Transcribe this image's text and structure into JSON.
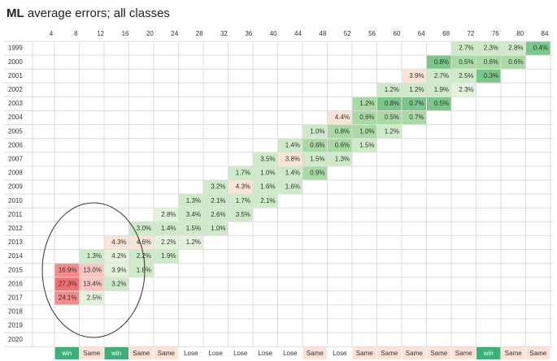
{
  "header": {
    "title_bold": "ML",
    "title_rest": "average errors; all classes"
  },
  "columns": [
    "4",
    "8",
    "12",
    "16",
    "20",
    "24",
    "28",
    "32",
    "36",
    "40",
    "44",
    "48",
    "52",
    "56",
    "60",
    "64",
    "68",
    "72",
    "76",
    "80",
    "84"
  ],
  "rows": [
    {
      "year": "1999",
      "cells": [
        null,
        null,
        null,
        null,
        null,
        null,
        null,
        null,
        null,
        null,
        null,
        null,
        null,
        null,
        null,
        null,
        {
          "text": "2.7%",
          "color": "#cfeac8"
        },
        {
          "text": "2.3%",
          "color": "#cfeac8"
        },
        {
          "text": "2.8%",
          "color": "#cfeac8"
        },
        {
          "text": "0.4%",
          "color": "#7cc68c"
        }
      ]
    },
    {
      "year": "2000",
      "cells": [
        null,
        null,
        null,
        null,
        null,
        null,
        null,
        null,
        null,
        null,
        null,
        null,
        null,
        null,
        null,
        {
          "text": "0.8%",
          "color": "#7cc68c"
        },
        {
          "text": "0.5%",
          "color": "#a9d9a5"
        },
        {
          "text": "0.6%",
          "color": "#a9d9a5"
        },
        {
          "text": "0.6%",
          "color": "#a9d9a5"
        }
      ]
    },
    {
      "year": "2001",
      "cells": [
        null,
        null,
        null,
        null,
        null,
        null,
        null,
        null,
        null,
        null,
        null,
        null,
        null,
        null,
        {
          "text": "3.9%",
          "color": "#fbe3d6"
        },
        {
          "text": "2.7%",
          "color": "#cfeac8"
        },
        {
          "text": "2.5%",
          "color": "#cfeac8"
        },
        {
          "text": "0.3%",
          "color": "#7cc68c"
        }
      ]
    },
    {
      "year": "2002",
      "cells": [
        null,
        null,
        null,
        null,
        null,
        null,
        null,
        null,
        null,
        null,
        null,
        null,
        null,
        {
          "text": "1.2%",
          "color": "#cfeac8"
        },
        {
          "text": "1.2%",
          "color": "#cfeac8"
        },
        {
          "text": "1.9%",
          "color": "#cfeac8"
        },
        {
          "text": "2.3%",
          "color": "#e4f2dc"
        }
      ]
    },
    {
      "year": "2003",
      "cells": [
        null,
        null,
        null,
        null,
        null,
        null,
        null,
        null,
        null,
        null,
        null,
        null,
        {
          "text": "1.2%",
          "color": "#a9d9a5"
        },
        {
          "text": "0.8%",
          "color": "#7cc68c"
        },
        {
          "text": "0.7%",
          "color": "#7cc68c"
        },
        {
          "text": "0.5%",
          "color": "#7cc68c"
        }
      ]
    },
    {
      "year": "2004",
      "cells": [
        null,
        null,
        null,
        null,
        null,
        null,
        null,
        null,
        null,
        null,
        null,
        {
          "text": "4.4%",
          "color": "#fbe3d6"
        },
        {
          "text": "0.6%",
          "color": "#a9d9a5"
        },
        {
          "text": "0.5%",
          "color": "#a9d9a5"
        },
        {
          "text": "0.7%",
          "color": "#a9d9a5"
        }
      ]
    },
    {
      "year": "2005",
      "cells": [
        null,
        null,
        null,
        null,
        null,
        null,
        null,
        null,
        null,
        null,
        {
          "text": "1.0%",
          "color": "#cfeac8"
        },
        {
          "text": "0.8%",
          "color": "#a9d9a5"
        },
        {
          "text": "1.0%",
          "color": "#a9d9a5"
        },
        {
          "text": "1.2%",
          "color": "#cfeac8"
        }
      ]
    },
    {
      "year": "2006",
      "cells": [
        null,
        null,
        null,
        null,
        null,
        null,
        null,
        null,
        null,
        {
          "text": "1.4%",
          "color": "#cfeac8"
        },
        {
          "text": "0.6%",
          "color": "#a9d9a5"
        },
        {
          "text": "0.6%",
          "color": "#a9d9a5"
        },
        {
          "text": "1.5%",
          "color": "#cfeac8"
        }
      ]
    },
    {
      "year": "2007",
      "cells": [
        null,
        null,
        null,
        null,
        null,
        null,
        null,
        null,
        {
          "text": "3.5%",
          "color": "#cfeac8"
        },
        {
          "text": "3.8%",
          "color": "#fbe3d6"
        },
        {
          "text": "1.5%",
          "color": "#cfeac8"
        },
        {
          "text": "1.3%",
          "color": "#cfeac8"
        }
      ]
    },
    {
      "year": "2008",
      "cells": [
        null,
        null,
        null,
        null,
        null,
        null,
        null,
        {
          "text": "1.7%",
          "color": "#cfeac8"
        },
        {
          "text": "1.0%",
          "color": "#cfeac8"
        },
        {
          "text": "1.4%",
          "color": "#cfeac8"
        },
        {
          "text": "0.9%",
          "color": "#a9d9a5"
        }
      ]
    },
    {
      "year": "2009",
      "cells": [
        null,
        null,
        null,
        null,
        null,
        null,
        {
          "text": "3.2%",
          "color": "#cfeac8"
        },
        {
          "text": "4.3%",
          "color": "#fbe3d6"
        },
        {
          "text": "1.6%",
          "color": "#cfeac8"
        },
        {
          "text": "1.6%",
          "color": "#cfeac8"
        }
      ]
    },
    {
      "year": "2010",
      "cells": [
        null,
        null,
        null,
        null,
        null,
        {
          "text": "1.3%",
          "color": "#cfeac8"
        },
        {
          "text": "2.1%",
          "color": "#cfeac8"
        },
        {
          "text": "1.7%",
          "color": "#cfeac8"
        },
        {
          "text": "2.1%",
          "color": "#cfeac8"
        }
      ]
    },
    {
      "year": "2011",
      "cells": [
        null,
        null,
        null,
        null,
        {
          "text": "2.8%",
          "color": "#e4f2dc"
        },
        {
          "text": "3.4%",
          "color": "#cfeac8"
        },
        {
          "text": "2.6%",
          "color": "#cfeac8"
        },
        {
          "text": "3.5%",
          "color": "#cfeac8"
        }
      ]
    },
    {
      "year": "2012",
      "cells": [
        null,
        null,
        null,
        {
          "text": "3.0%",
          "color": "#cfeac8"
        },
        {
          "text": "1.4%",
          "color": "#cfeac8"
        },
        {
          "text": "1.5%",
          "color": "#cfeac8"
        },
        {
          "text": "1.0%",
          "color": "#cfeac8"
        }
      ]
    },
    {
      "year": "2013",
      "cells": [
        null,
        null,
        {
          "text": "4.3%",
          "color": "#fbe3d6"
        },
        {
          "text": "4.6%",
          "color": "#fbe3d6"
        },
        {
          "text": "2.2%",
          "color": "#e4f2dc"
        },
        {
          "text": "1.2%",
          "color": "#e4f2dc"
        }
      ]
    },
    {
      "year": "2014",
      "cells": [
        null,
        {
          "text": "1.3%",
          "color": "#cfeac8"
        },
        {
          "text": "4.2%",
          "color": "#e4f2dc"
        },
        {
          "text": "2.2%",
          "color": "#cfeac8"
        },
        {
          "text": "1.9%",
          "color": "#cfeac8"
        }
      ]
    },
    {
      "year": "2015",
      "cells": [
        {
          "text": "16.9%",
          "color": "#f28b8b"
        },
        {
          "text": "13.0%",
          "color": "#f7c6bf"
        },
        {
          "text": "3.9%",
          "color": "#e4f2dc"
        },
        {
          "text": "1.8%",
          "color": "#cfeac8"
        }
      ]
    },
    {
      "year": "2016",
      "cells": [
        {
          "text": "27.3%",
          "color": "#f07070"
        },
        {
          "text": "13.4%",
          "color": "#f7c6bf"
        },
        {
          "text": "3.2%",
          "color": "#cfeac8"
        }
      ]
    },
    {
      "year": "2017",
      "cells": [
        {
          "text": "24.1%",
          "color": "#f28b8b"
        },
        {
          "text": "2.5%",
          "color": "#e4f2dc"
        }
      ]
    },
    {
      "year": "2018",
      "cells": []
    },
    {
      "year": "2019",
      "cells": []
    },
    {
      "year": "2020",
      "cells": []
    }
  ],
  "footer": [
    {
      "text": "win",
      "color": "#3fae7a",
      "text_color": "#ffffff"
    },
    {
      "text": "Same",
      "color": "#fbe2d5",
      "text_color": "#333333"
    },
    {
      "text": "win",
      "color": "#3fae7a",
      "text_color": "#ffffff"
    },
    {
      "text": "Same",
      "color": "#fbe2d5",
      "text_color": "#333333"
    },
    {
      "text": "Same",
      "color": "#fbe2d5",
      "text_color": "#333333"
    },
    {
      "text": "Lose",
      "color": "#ffffff",
      "text_color": "#333333"
    },
    {
      "text": "Lose",
      "color": "#ffffff",
      "text_color": "#333333"
    },
    {
      "text": "Lose",
      "color": "#ffffff",
      "text_color": "#333333"
    },
    {
      "text": "Lose",
      "color": "#ffffff",
      "text_color": "#333333"
    },
    {
      "text": "Lose",
      "color": "#ffffff",
      "text_color": "#333333"
    },
    {
      "text": "Same",
      "color": "#fbe2d5",
      "text_color": "#333333"
    },
    {
      "text": "Lose",
      "color": "#ffffff",
      "text_color": "#333333"
    },
    {
      "text": "Same",
      "color": "#fbe2d5",
      "text_color": "#333333"
    },
    {
      "text": "Same",
      "color": "#fbe2d5",
      "text_color": "#333333"
    },
    {
      "text": "Same",
      "color": "#fbe2d5",
      "text_color": "#333333"
    },
    {
      "text": "Same",
      "color": "#fbe2d5",
      "text_color": "#333333"
    },
    {
      "text": "Same",
      "color": "#fbe2d5",
      "text_color": "#333333"
    },
    {
      "text": "win",
      "color": "#3fae7a",
      "text_color": "#ffffff"
    },
    {
      "text": "Same",
      "color": "#fbe2d5",
      "text_color": "#333333"
    },
    {
      "text": "Same",
      "color": "#fbe2d5",
      "text_color": "#333333"
    }
  ]
}
